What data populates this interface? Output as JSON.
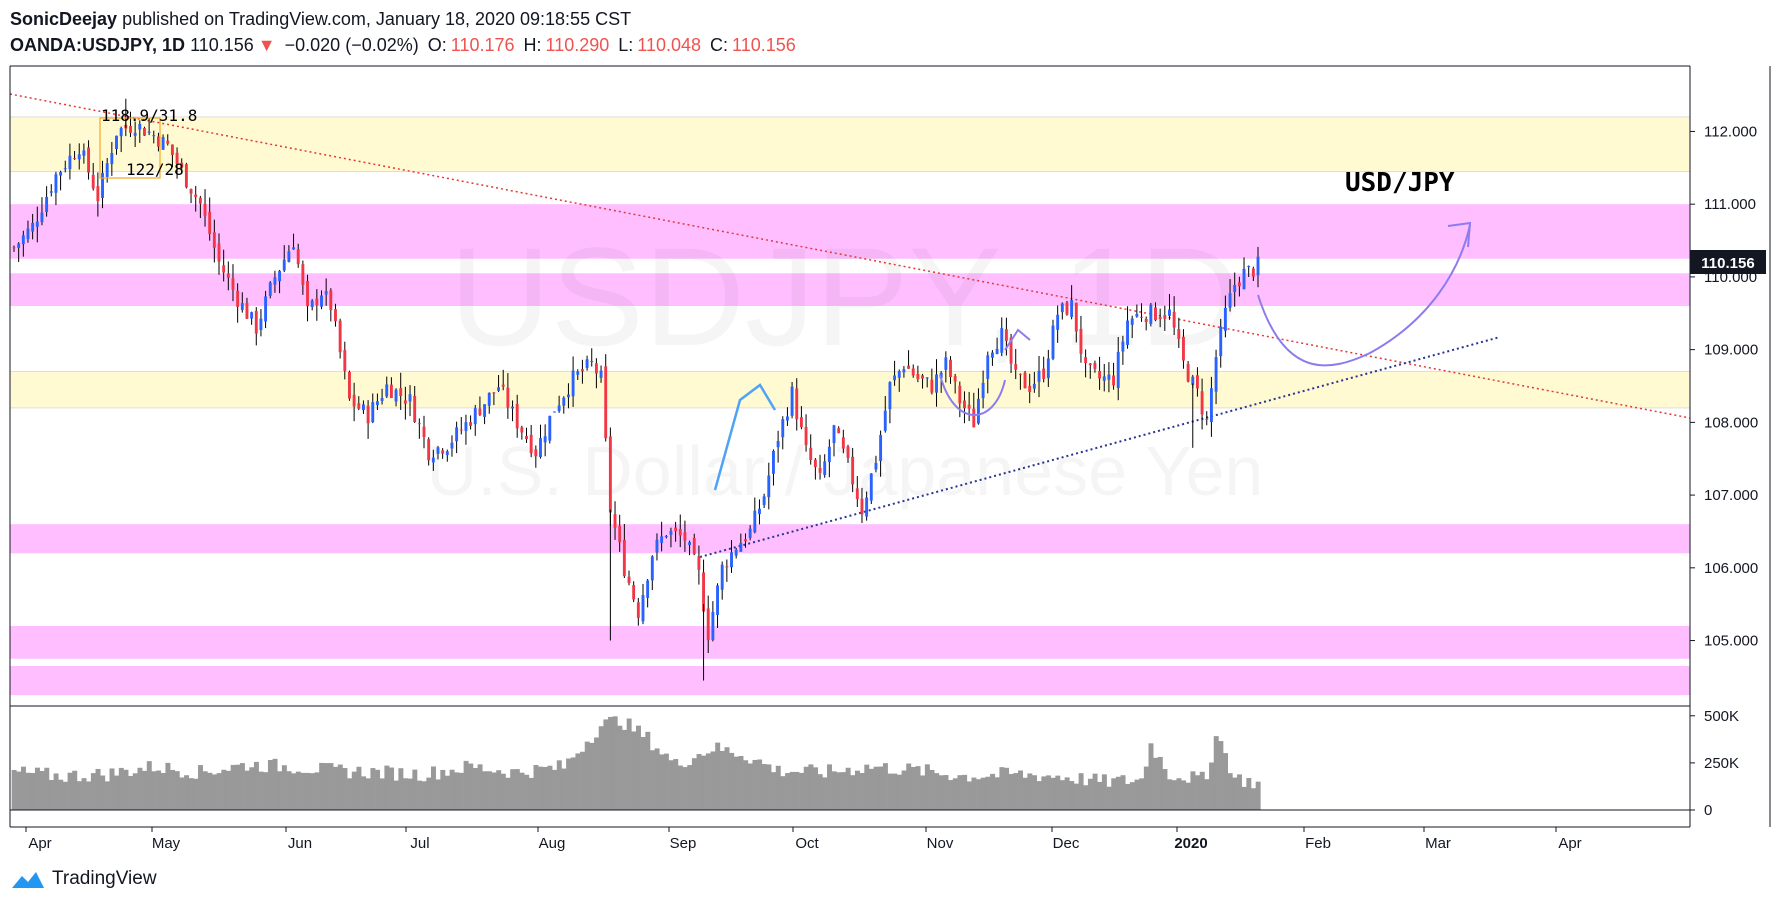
{
  "header": {
    "author": "SonicDeejay",
    "published_text": "published on TradingView.com, January 18, 2020 09:18:55 CST",
    "symbol": "OANDA:USDJPY, 1D",
    "last": "110.156",
    "change_arrow": "▼",
    "change": "−0.020 (−0.02%)",
    "o_label": "O:",
    "o": "110.176",
    "h_label": "H:",
    "h": "110.290",
    "l_label": "L:",
    "l": "110.048",
    "c_label": "C:",
    "c": "110.156"
  },
  "watermark": {
    "symbol": "USDJPY, 1D",
    "name": "U.S. Dollar / Japanese Yen"
  },
  "annotation": {
    "title": "USD/JPY",
    "fib1": "118.9/31.8",
    "fib2": "122/28"
  },
  "price_tag": "110.156",
  "footer": {
    "brand": "TradingView"
  },
  "colors": {
    "up": "#2962ff",
    "down": "#f23645",
    "pink_zone": "#ffb3ff",
    "yellow_zone": "#fffacd",
    "volume": "#999999",
    "trendline_red": "#e53935",
    "trendline_blue": "#283593",
    "projection": "#8c7cf0"
  },
  "chart_data": {
    "type": "candlestick",
    "price_ticks": [
      "112.000",
      "111.000",
      "110.000",
      "109.000",
      "108.000",
      "107.000",
      "106.000",
      "105.000"
    ],
    "volume_ticks": [
      "500K",
      "250K",
      "0"
    ],
    "x_ticks": [
      "Apr",
      "May",
      "Jun",
      "Jul",
      "Aug",
      "Sep",
      "Oct",
      "Nov",
      "Dec",
      "2020",
      "Feb",
      "Mar",
      "Apr"
    ],
    "ylim": [
      104.1,
      112.9
    ],
    "zones": [
      {
        "kind": "yellow",
        "low": 111.45,
        "high": 112.2
      },
      {
        "kind": "pink",
        "low": 110.25,
        "high": 111.0
      },
      {
        "kind": "pink",
        "low": 109.6,
        "high": 110.05
      },
      {
        "kind": "yellow",
        "low": 108.2,
        "high": 108.7
      },
      {
        "kind": "pink",
        "low": 106.2,
        "high": 106.6
      },
      {
        "kind": "pink",
        "low": 104.75,
        "high": 105.2
      },
      {
        "kind": "pink",
        "low": 104.25,
        "high": 104.65
      }
    ],
    "close_path": [
      [
        0,
        110.4
      ],
      [
        4,
        110.7
      ],
      [
        9,
        111.4
      ],
      [
        14,
        111.8
      ],
      [
        18,
        111.1
      ],
      [
        22,
        112.0
      ],
      [
        26,
        112.1
      ],
      [
        30,
        111.95
      ],
      [
        33,
        111.8
      ],
      [
        36,
        111.45
      ],
      [
        40,
        111.0
      ],
      [
        44,
        110.2
      ],
      [
        48,
        109.7
      ],
      [
        52,
        109.3
      ],
      [
        56,
        110.0
      ],
      [
        60,
        110.5
      ],
      [
        63,
        109.5
      ],
      [
        66,
        109.8
      ],
      [
        68,
        109.6
      ],
      [
        72,
        108.3
      ],
      [
        76,
        108.1
      ],
      [
        80,
        108.5
      ],
      [
        85,
        108.3
      ],
      [
        89,
        107.6
      ],
      [
        93,
        107.7
      ],
      [
        96,
        107.9
      ],
      [
        100,
        108.2
      ],
      [
        104,
        108.5
      ],
      [
        108,
        108.0
      ],
      [
        112,
        107.6
      ],
      [
        116,
        108.2
      ],
      [
        120,
        108.6
      ],
      [
        124,
        108.8
      ],
      [
        126,
        108.6
      ],
      [
        128,
        106.8
      ],
      [
        131,
        106.0
      ],
      [
        134,
        105.4
      ],
      [
        137,
        106.2
      ],
      [
        140,
        106.5
      ],
      [
        144,
        106.4
      ],
      [
        147,
        105.9
      ],
      [
        149,
        105.1
      ],
      [
        152,
        106.0
      ],
      [
        155,
        106.3
      ],
      [
        158,
        106.5
      ],
      [
        161,
        107.0
      ],
      [
        164,
        107.8
      ],
      [
        167,
        108.4
      ],
      [
        170,
        107.6
      ],
      [
        173,
        107.2
      ],
      [
        176,
        107.9
      ],
      [
        179,
        107.4
      ],
      [
        182,
        106.8
      ],
      [
        185,
        107.5
      ],
      [
        188,
        108.5
      ],
      [
        191,
        108.8
      ],
      [
        194,
        108.6
      ],
      [
        197,
        108.5
      ],
      [
        200,
        108.8
      ],
      [
        203,
        108.3
      ],
      [
        206,
        108.0
      ],
      [
        209,
        109.0
      ],
      [
        212,
        109.2
      ],
      [
        215,
        108.6
      ],
      [
        218,
        108.5
      ],
      [
        221,
        108.7
      ],
      [
        224,
        109.5
      ],
      [
        227,
        109.6
      ],
      [
        230,
        108.7
      ],
      [
        233,
        108.6
      ],
      [
        236,
        108.6
      ],
      [
        239,
        109.4
      ],
      [
        242,
        109.5
      ],
      [
        245,
        109.5
      ],
      [
        248,
        109.5
      ],
      [
        251,
        108.8
      ],
      [
        254,
        108.4
      ],
      [
        256,
        108.0
      ],
      [
        258,
        108.9
      ],
      [
        260,
        109.5
      ],
      [
        262,
        109.9
      ],
      [
        264,
        110.05
      ],
      [
        266,
        110.1
      ],
      [
        267,
        110.156
      ]
    ],
    "volume_path": [
      [
        0,
        200
      ],
      [
        10,
        180
      ],
      [
        20,
        190
      ],
      [
        30,
        230
      ],
      [
        40,
        200
      ],
      [
        50,
        240
      ],
      [
        60,
        230
      ],
      [
        68,
        210
      ],
      [
        78,
        200
      ],
      [
        88,
        190
      ],
      [
        98,
        230
      ],
      [
        108,
        200
      ],
      [
        118,
        230
      ],
      [
        126,
        450
      ],
      [
        130,
        480
      ],
      [
        136,
        380
      ],
      [
        142,
        240
      ],
      [
        150,
        330
      ],
      [
        156,
        300
      ],
      [
        164,
        210
      ],
      [
        174,
        200
      ],
      [
        184,
        230
      ],
      [
        194,
        210
      ],
      [
        204,
        180
      ],
      [
        214,
        190
      ],
      [
        224,
        180
      ],
      [
        234,
        150
      ],
      [
        242,
        160
      ],
      [
        244,
        350
      ],
      [
        248,
        190
      ],
      [
        256,
        160
      ],
      [
        258,
        420
      ],
      [
        262,
        170
      ],
      [
        267,
        140
      ]
    ]
  }
}
